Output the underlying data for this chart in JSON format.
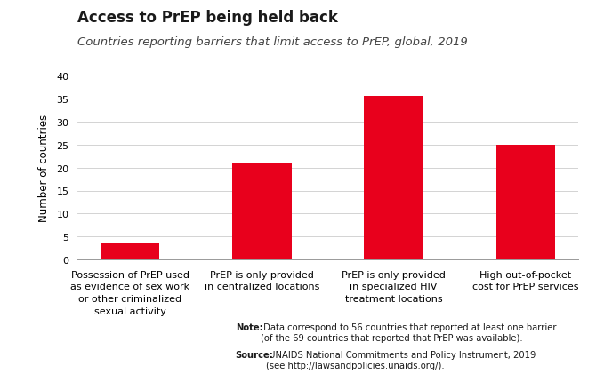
{
  "title": "Access to PrEP being held back",
  "subtitle": "Countries reporting barriers that limit access to PrEP, global, 2019",
  "categories": [
    "Possession of PrEP used\nas evidence of sex work\nor other criminalized\nsexual activity",
    "PrEP is only provided\nin centralized locations",
    "PrEP is only provided\nin specialized HIV\ntreatment locations",
    "High out-of-pocket\ncost for PrEP services"
  ],
  "values": [
    3.5,
    21,
    35.5,
    25
  ],
  "bar_color": "#e8001c",
  "ylabel": "Number of countries",
  "ylim": [
    0,
    40
  ],
  "yticks": [
    0,
    5,
    10,
    15,
    20,
    25,
    30,
    35,
    40
  ],
  "note_bold": "Note:",
  "note_text": " Data correspond to 56 countries that reported at least one barrier\n(of the 69 countries that reported that PrEP was available).",
  "source_bold": "Source:",
  "source_text": " UNAIDS National Commitments and Policy Instrument, 2019\n(see http://lawsandpolicies.unaids.org/).",
  "background_color": "#ffffff",
  "title_fontsize": 12,
  "subtitle_fontsize": 9.5,
  "ylabel_fontsize": 8.5,
  "tick_fontsize": 8,
  "note_fontsize": 7.2
}
